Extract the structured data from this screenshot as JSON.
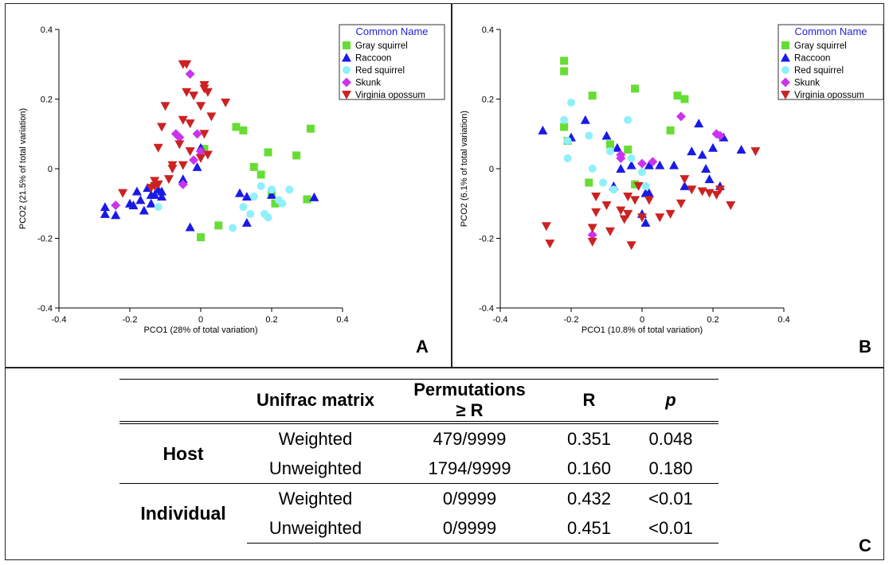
{
  "panels": [
    {
      "letter": "A",
      "chart_data": {
        "type": "scatter",
        "xlabel": "PCO1 (28% of total variation)",
        "ylabel": "PCO2 (21.5% of total variation)",
        "xlim": [
          -0.4,
          0.4
        ],
        "ylim": [
          -0.4,
          0.4
        ],
        "xticks": [
          "-0.4",
          "-0.2",
          "0",
          "0.2",
          "0.4"
        ],
        "yticks": [
          "0.4",
          "0.2",
          "0",
          "-0.2",
          "-0.4"
        ],
        "legend_title": "Common Name",
        "legend_position": "top-right",
        "series": [
          {
            "name": "Gray squirrel",
            "marker": "square",
            "color": "#66dd33",
            "x": [
              0.1,
              0.12,
              0.31,
              0.19,
              0.27,
              0.15,
              0.17,
              0.2,
              0.21,
              0.3,
              0.01,
              0.05,
              0.0
            ],
            "y": [
              0.12,
              0.11,
              0.115,
              0.047,
              0.038,
              0.005,
              -0.017,
              -0.068,
              -0.1,
              -0.088,
              0.057,
              -0.163,
              -0.197
            ]
          },
          {
            "name": "Raccoon",
            "marker": "triangle-up",
            "color": "#1a1ae6",
            "x": [
              -0.27,
              -0.27,
              -0.24,
              -0.2,
              -0.19,
              -0.18,
              -0.17,
              -0.16,
              -0.15,
              -0.14,
              -0.14,
              -0.13,
              -0.12,
              -0.11,
              -0.11,
              -0.05,
              -0.01,
              0.0,
              -0.03,
              0.11,
              0.13,
              0.13,
              0.2,
              0.32
            ],
            "y": [
              -0.11,
              -0.13,
              -0.133,
              -0.1,
              -0.105,
              -0.065,
              -0.09,
              -0.12,
              -0.055,
              -0.075,
              -0.1,
              -0.075,
              -0.06,
              -0.065,
              -0.08,
              -0.03,
              0.005,
              0.06,
              -0.168,
              -0.07,
              -0.08,
              -0.155,
              -0.075,
              -0.082
            ]
          },
          {
            "name": "Red squirrel",
            "marker": "circle",
            "color": "#8ef0fa",
            "x": [
              -0.12,
              0.09,
              0.12,
              0.14,
              0.15,
              0.17,
              0.18,
              0.19,
              0.2,
              0.22,
              0.23,
              0.25
            ],
            "y": [
              -0.11,
              -0.17,
              -0.11,
              -0.13,
              -0.08,
              -0.05,
              -0.13,
              -0.14,
              -0.06,
              -0.09,
              -0.1,
              -0.06
            ],
            "note": "approximate"
          },
          {
            "name": "Skunk",
            "marker": "diamond",
            "color": "#cc33ee",
            "x": [
              -0.24,
              -0.03,
              -0.07,
              -0.06,
              -0.01,
              0.0,
              -0.02,
              -0.05,
              0.0
            ],
            "y": [
              -0.105,
              0.272,
              0.1,
              0.09,
              0.1,
              0.05,
              0.025,
              -0.045,
              0.04
            ]
          },
          {
            "name": "Virginia opossum",
            "marker": "triangle-down",
            "color": "#cc2222",
            "x": [
              -0.04,
              -0.05,
              -0.04,
              -0.02,
              0.01,
              0.0,
              0.01,
              0.02,
              -0.1,
              -0.05,
              -0.03,
              0.03,
              0.01,
              0.07,
              -0.11,
              -0.06,
              -0.03,
              -0.12,
              -0.08,
              0.0,
              -0.05,
              -0.13,
              0.02,
              -0.09,
              -0.08,
              -0.12,
              -0.13,
              -0.14,
              -0.22
            ],
            "y": [
              0.3,
              0.3,
              0.22,
              0.21,
              0.23,
              0.18,
              0.24,
              0.22,
              0.18,
              0.14,
              0.13,
              0.15,
              0.1,
              0.19,
              0.12,
              0.07,
              0.05,
              0.06,
              0.01,
              0.03,
              0.01,
              -0.035,
              0.04,
              -0.03,
              0.0,
              -0.045,
              -0.05,
              -0.055,
              -0.07
            ]
          }
        ]
      }
    },
    {
      "letter": "B",
      "chart_data": {
        "type": "scatter",
        "xlabel": "PCO1 (10.8% of total variation)",
        "ylabel": "PCO2 (6.1% of total variation)",
        "xlim": [
          -0.4,
          0.4
        ],
        "ylim": [
          -0.4,
          0.4
        ],
        "xticks": [
          "-0.4",
          "-0.2",
          "0",
          "0.2",
          "0.4"
        ],
        "yticks": [
          "0.4",
          "0.2",
          "0",
          "-0.2",
          "-0.4"
        ],
        "legend_title": "Common Name",
        "legend_position": "top-right",
        "series": [
          {
            "name": "Gray squirrel",
            "marker": "square",
            "color": "#66dd33",
            "x": [
              -0.22,
              -0.22,
              -0.22,
              -0.21,
              -0.14,
              -0.02,
              0.1,
              0.12,
              0.08,
              -0.09,
              -0.04,
              -0.15,
              -0.02
            ],
            "y": [
              0.31,
              0.28,
              0.12,
              0.08,
              0.21,
              0.23,
              0.21,
              0.2,
              0.11,
              0.07,
              0.055,
              -0.04,
              -0.045
            ],
            "note": "approximate"
          },
          {
            "name": "Raccoon",
            "marker": "triangle-up",
            "color": "#1a1ae6",
            "x": [
              -0.28,
              -0.16,
              -0.2,
              -0.1,
              -0.07,
              -0.08,
              -0.06,
              -0.03,
              0.01,
              0.0,
              0.01,
              0.02,
              0.02,
              0.05,
              0.09,
              0.12,
              0.14,
              0.16,
              0.17,
              0.18,
              0.19,
              0.2,
              0.22,
              0.23,
              0.28
            ],
            "y": [
              0.11,
              0.14,
              0.09,
              0.095,
              0.06,
              -0.05,
              0.0,
              0.01,
              -0.07,
              -0.13,
              -0.155,
              -0.07,
              0.01,
              0.01,
              0.01,
              -0.05,
              0.05,
              0.13,
              0.04,
              0.0,
              -0.03,
              0.06,
              -0.05,
              0.09,
              0.055
            ],
            "note": "approximate"
          },
          {
            "name": "Red squirrel",
            "marker": "circle",
            "color": "#8ef0fa",
            "x": [
              -0.2,
              -0.22,
              -0.21,
              -0.21,
              -0.15,
              -0.14,
              -0.09,
              -0.08,
              -0.04,
              -0.03,
              0.0,
              0.01,
              -0.11
            ],
            "y": [
              0.19,
              0.14,
              0.08,
              0.03,
              0.095,
              0.0,
              0.05,
              -0.06,
              0.14,
              0.03,
              -0.01,
              -0.05,
              -0.04
            ],
            "note": "approximate"
          },
          {
            "name": "Skunk",
            "marker": "diamond",
            "color": "#cc33ee",
            "x": [
              -0.14,
              0.0,
              0.03,
              0.11,
              0.21,
              0.22,
              -0.06,
              -0.06
            ],
            "y": [
              -0.19,
              0.015,
              0.02,
              0.15,
              0.1,
              0.095,
              0.03,
              0.04
            ]
          },
          {
            "name": "Virginia opossum",
            "marker": "triangle-down",
            "color": "#cc2222",
            "x": [
              -0.27,
              -0.26,
              -0.14,
              -0.14,
              -0.1,
              -0.13,
              -0.06,
              -0.04,
              -0.04,
              -0.03,
              -0.02,
              -0.01,
              0.02,
              0.05,
              0.08,
              0.11,
              0.12,
              0.14,
              0.17,
              0.19,
              0.21,
              0.22,
              0.25,
              0.32,
              0.0,
              -0.05,
              -0.09,
              -0.13
            ],
            "y": [
              -0.165,
              -0.215,
              -0.17,
              -0.21,
              -0.105,
              -0.125,
              -0.12,
              -0.08,
              -0.13,
              -0.22,
              -0.09,
              -0.05,
              -0.09,
              -0.14,
              -0.13,
              -0.1,
              -0.03,
              -0.06,
              -0.065,
              -0.07,
              -0.075,
              -0.06,
              -0.105,
              0.05,
              -0.14,
              -0.145,
              -0.18,
              -0.08
            ],
            "note": "approximate"
          }
        ]
      }
    }
  ],
  "table": {
    "letter": "C",
    "headers": [
      "",
      "Unifrac matrix",
      "Permutations ≥ R",
      "R",
      "p"
    ],
    "header_perm_line1": "Permutations",
    "header_perm_line2": "≥ R",
    "groups": [
      {
        "label": "Host",
        "rows": [
          {
            "matrix": "Weighted",
            "perm": "479/9999",
            "r": "0.351",
            "p": "0.048"
          },
          {
            "matrix": "Unweighted",
            "perm": "1794/9999",
            "r": "0.160",
            "p": "0.180"
          }
        ]
      },
      {
        "label": "Individual",
        "rows": [
          {
            "matrix": "Weighted",
            "perm": "0/9999",
            "r": "0.432",
            "p": "<0.01"
          },
          {
            "matrix": "Unweighted",
            "perm": "0/9999",
            "r": "0.451",
            "p": "<0.01"
          }
        ]
      }
    ]
  }
}
